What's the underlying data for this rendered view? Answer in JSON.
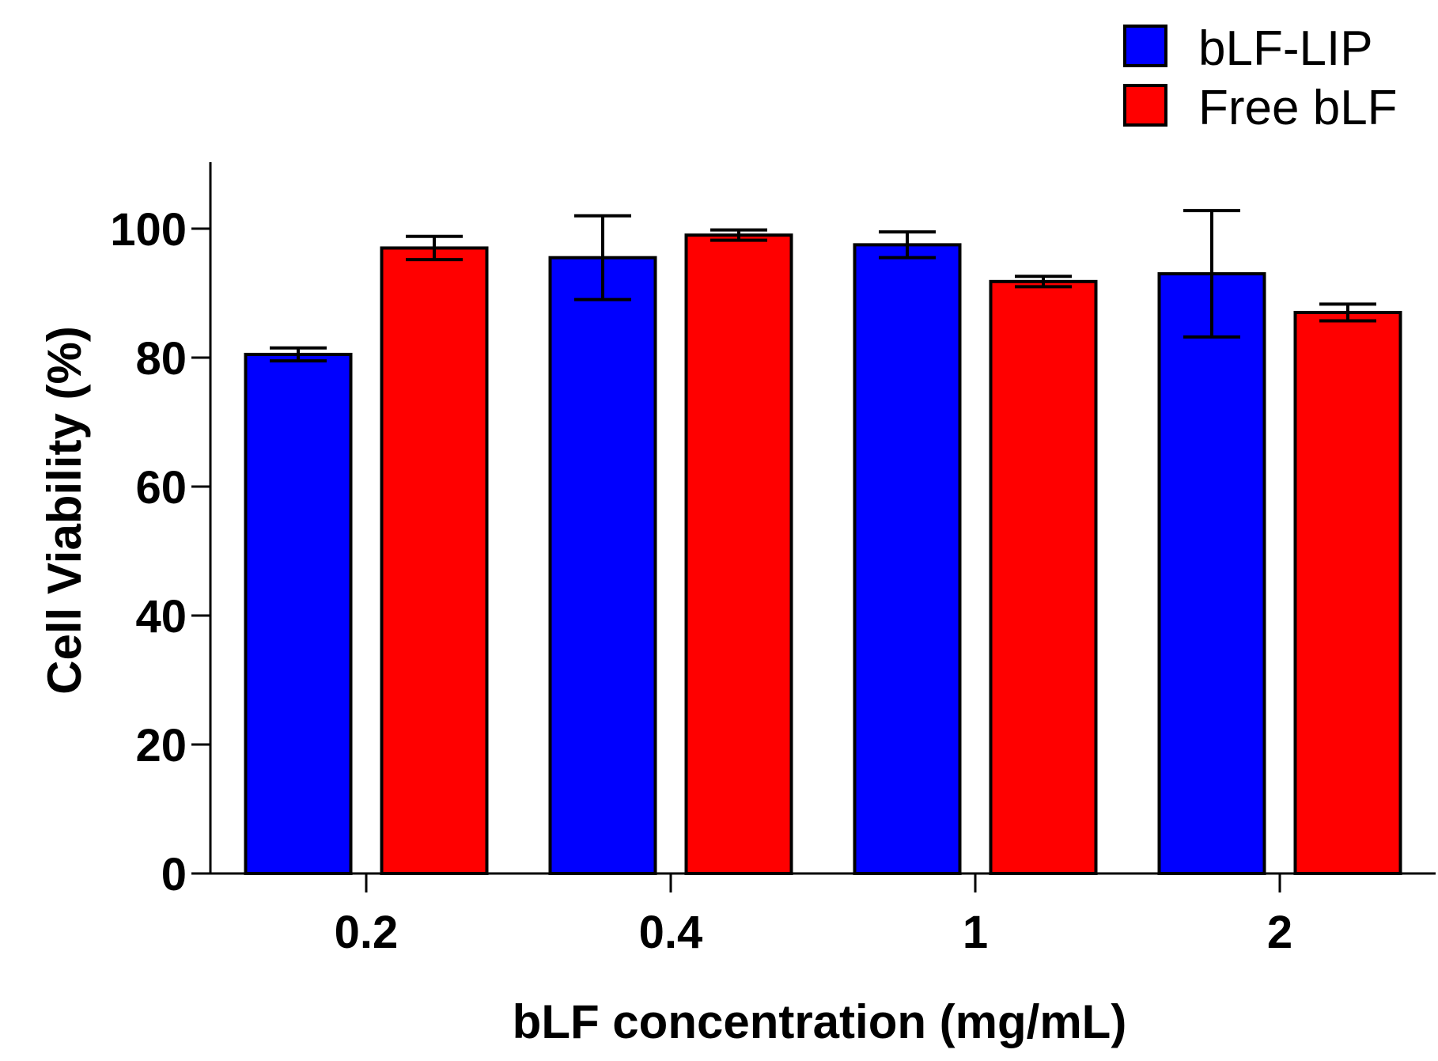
{
  "chart_data": {
    "type": "bar",
    "title": "",
    "xlabel": "bLF concentration (mg/mL)",
    "ylabel": "Cell Viability (%)",
    "categories": [
      "0.2",
      "0.4",
      "1",
      "2"
    ],
    "ylim": [
      0,
      110
    ],
    "yticks": [
      0,
      20,
      40,
      60,
      80,
      100
    ],
    "ytick_labels": [
      "0",
      "20",
      "40",
      "60",
      "80",
      "100"
    ],
    "legend_position": "top-right",
    "series": [
      {
        "name": "bLF-LIP",
        "color": "#0000FF",
        "values": [
          80.5,
          95.5,
          97.5,
          93
        ],
        "errors": [
          1.0,
          6.5,
          2.0,
          9.8
        ]
      },
      {
        "name": "Free bLF",
        "color": "#FF0000",
        "values": [
          97,
          99,
          91.8,
          87
        ],
        "errors": [
          1.8,
          0.8,
          0.8,
          1.3
        ]
      }
    ]
  }
}
